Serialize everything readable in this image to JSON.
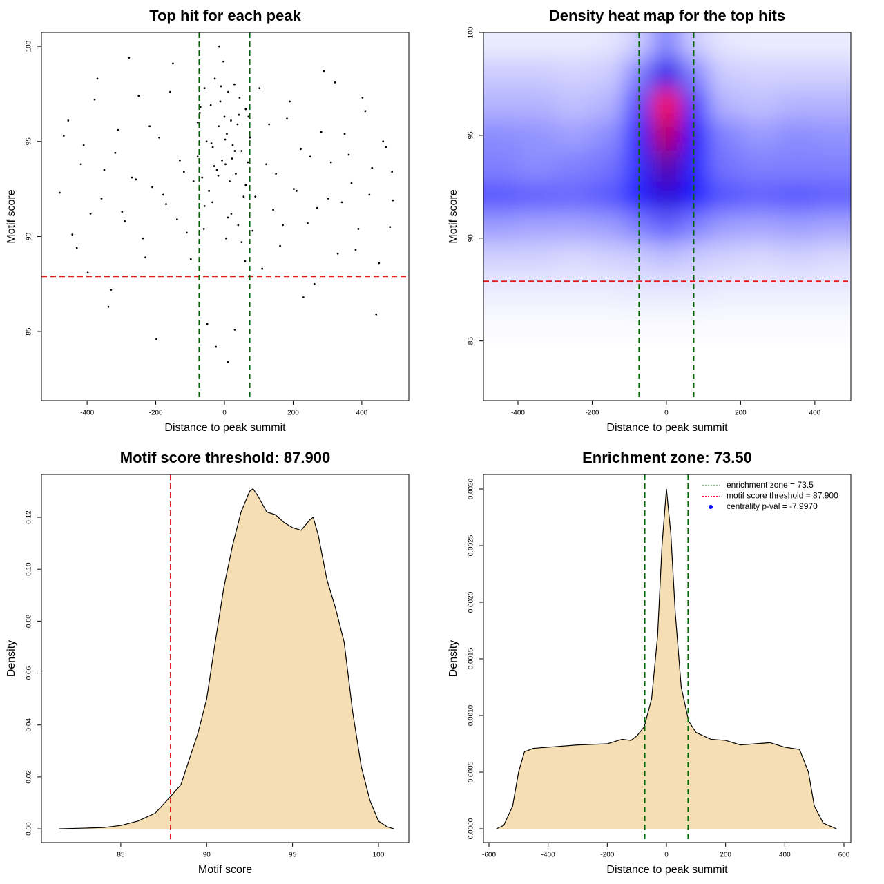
{
  "chart_data": [
    {
      "type": "scatter",
      "title": "Top hit for each peak",
      "xlabel": "Distance to peak summit",
      "ylabel": "Motif score",
      "xlim": [
        -533,
        537
      ],
      "ylim": [
        81.37,
        100.73
      ],
      "xticks": [
        -400,
        -200,
        0,
        200,
        400
      ],
      "yticks": [
        85,
        90,
        95,
        100
      ],
      "color": "#000000",
      "x": [
        -480,
        -455,
        -430,
        -410,
        -390,
        -370,
        -350,
        -330,
        -310,
        -290,
        -270,
        -250,
        -230,
        -210,
        -190,
        -170,
        -150,
        -130,
        -110,
        -90,
        -70,
        -50,
        -30,
        -10,
        10,
        30,
        50,
        70,
        90,
        110,
        130,
        150,
        170,
        190,
        210,
        230,
        250,
        270,
        290,
        310,
        330,
        350,
        370,
        390,
        410,
        430,
        450,
        470,
        490,
        -468,
        -443,
        -418,
        -398,
        -378,
        -358,
        -338,
        -318,
        -298,
        -278,
        -258,
        -238,
        -218,
        -198,
        -178,
        -158,
        -138,
        -118,
        -98,
        -78,
        -58,
        -38,
        -18,
        2,
        22,
        42,
        62,
        82,
        102,
        122,
        142,
        162,
        182,
        202,
        222,
        242,
        262,
        282,
        302,
        322,
        342,
        362,
        382,
        402,
        422,
        442,
        462,
        482,
        488,
        -78,
        -72,
        -65,
        -58,
        -52,
        -45,
        -40,
        -34,
        -28,
        -22,
        -17,
        -12,
        -7,
        -3,
        0,
        3,
        7,
        11,
        15,
        19,
        24,
        29,
        33,
        38,
        44,
        50,
        56,
        62,
        68,
        74,
        -60,
        -35,
        -15,
        5,
        20,
        40,
        60,
        -25,
        10,
        30
      ],
      "values": [
        92.3,
        96.1,
        89.4,
        94.8,
        91.2,
        98.3,
        93.5,
        87.2,
        95.6,
        90.8,
        93.1,
        97.4,
        88.9,
        92.6,
        95.2,
        91.7,
        99.1,
        94.0,
        90.2,
        92.9,
        96.8,
        85.4,
        93.7,
        97.9,
        91.0,
        94.5,
        89.7,
        96.3,
        92.1,
        88.3,
        95.9,
        93.3,
        90.6,
        97.1,
        92.4,
        86.8,
        94.2,
        91.5,
        98.7,
        93.9,
        89.1,
        95.4,
        92.8,
        90.4,
        96.6,
        93.6,
        88.6,
        94.7,
        91.9,
        95.3,
        90.1,
        93.8,
        88.1,
        97.2,
        92.0,
        86.3,
        94.4,
        91.3,
        99.4,
        93.0,
        89.9,
        95.8,
        84.6,
        92.2,
        97.6,
        90.9,
        93.4,
        88.8,
        96.0,
        91.6,
        94.9,
        93.2,
        95.1,
        94.1,
        96.4,
        92.7,
        90.3,
        97.8,
        93.8,
        91.4,
        89.5,
        96.2,
        92.5,
        94.6,
        90.7,
        87.5,
        95.5,
        92.0,
        98.1,
        91.8,
        94.3,
        89.3,
        97.3,
        92.2,
        85.9,
        95.0,
        90.5,
        93.4,
        94.2,
        96.5,
        93.1,
        97.8,
        95.0,
        92.4,
        96.9,
        94.7,
        98.3,
        93.5,
        95.8,
        97.1,
        94.0,
        99.2,
        96.3,
        93.8,
        95.4,
        97.6,
        92.9,
        96.1,
        94.8,
        98.0,
        93.3,
        95.9,
        97.3,
        94.5,
        92.1,
        96.7,
        93.9,
        95.2,
        90.4,
        91.8,
        100.0,
        89.9,
        91.2,
        90.6,
        88.7,
        84.2,
        83.4,
        85.1
      ],
      "hlines": [
        {
          "value": 87.9,
          "color": "#e41a1c"
        }
      ],
      "vlines": [
        {
          "value": -73.5,
          "color": "#006400"
        },
        {
          "value": 73.5,
          "color": "#006400"
        }
      ]
    },
    {
      "type": "heatmap",
      "title": "Density heat map for the top hits",
      "xlabel": "Distance to peak summit",
      "ylabel": "Motif score",
      "xlim": [
        -493,
        497
      ],
      "ylim": [
        82.1,
        100
      ],
      "xticks": [
        -400,
        -200,
        0,
        200,
        400
      ],
      "yticks": [
        85,
        90,
        95,
        100
      ],
      "x": [
        -450,
        -350,
        -250,
        -150,
        -75,
        0,
        75,
        150,
        250,
        350,
        450
      ],
      "y": [
        99.5,
        98,
        96.5,
        95,
        93.5,
        92,
        90.5,
        89,
        87.5,
        86,
        84.5
      ],
      "z": [
        [
          0.03,
          0.03,
          0.03,
          0.04,
          0.08,
          0.2,
          0.08,
          0.04,
          0.03,
          0.03,
          0.03
        ],
        [
          0.08,
          0.08,
          0.07,
          0.08,
          0.2,
          0.45,
          0.2,
          0.08,
          0.07,
          0.07,
          0.07
        ],
        [
          0.12,
          0.12,
          0.1,
          0.12,
          0.3,
          1.0,
          0.32,
          0.12,
          0.1,
          0.12,
          0.12
        ],
        [
          0.18,
          0.17,
          0.15,
          0.18,
          0.35,
          0.85,
          0.38,
          0.2,
          0.16,
          0.18,
          0.17
        ],
        [
          0.2,
          0.18,
          0.2,
          0.22,
          0.33,
          0.62,
          0.35,
          0.22,
          0.2,
          0.2,
          0.2
        ],
        [
          0.26,
          0.25,
          0.24,
          0.26,
          0.35,
          0.5,
          0.36,
          0.27,
          0.25,
          0.26,
          0.25
        ],
        [
          0.15,
          0.14,
          0.14,
          0.15,
          0.2,
          0.25,
          0.2,
          0.15,
          0.14,
          0.15,
          0.14
        ],
        [
          0.07,
          0.07,
          0.06,
          0.07,
          0.08,
          0.1,
          0.08,
          0.07,
          0.06,
          0.07,
          0.06
        ],
        [
          0.03,
          0.03,
          0.03,
          0.03,
          0.04,
          0.04,
          0.04,
          0.03,
          0.03,
          0.03,
          0.03
        ],
        [
          0.01,
          0.01,
          0.01,
          0.01,
          0.01,
          0.01,
          0.01,
          0.01,
          0.01,
          0.01,
          0.01
        ],
        [
          0,
          0,
          0,
          0,
          0,
          0,
          0,
          0,
          0,
          0,
          0
        ]
      ],
      "colors": [
        "#ffffff",
        "#0000ff",
        "#ff0000"
      ],
      "hlines": [
        {
          "value": 87.9,
          "color": "#e41a1c"
        }
      ],
      "vlines": [
        {
          "value": -73.5,
          "color": "#006400"
        },
        {
          "value": 73.5,
          "color": "#006400"
        }
      ]
    },
    {
      "type": "area",
      "title": "Motif score threshold: 87.900",
      "xlabel": "Motif score",
      "ylabel": "Density",
      "xlim": [
        80.38,
        101.77
      ],
      "ylim": [
        -0.0053,
        0.1365
      ],
      "xticks": [
        85,
        90,
        95,
        100
      ],
      "yticks": [
        {
          "value": 0,
          "label": "0.00"
        },
        0.02,
        0.04,
        0.06,
        0.08,
        {
          "value": 0.1,
          "label": "0.10"
        },
        0.12
      ],
      "color": "#f5deb3",
      "x": [
        81.4,
        83,
        84,
        85,
        86,
        87,
        87.9,
        88.5,
        89,
        89.5,
        90,
        90.5,
        91,
        91.5,
        92,
        92.5,
        92.7,
        93,
        93.5,
        94,
        94.5,
        95,
        95.5,
        96,
        96.2,
        96.5,
        97,
        97.5,
        98,
        98.5,
        99,
        99.5,
        100,
        100.5,
        100.9
      ],
      "values": [
        0,
        0.0003,
        0.0005,
        0.0013,
        0.003,
        0.006,
        0.0125,
        0.017,
        0.027,
        0.037,
        0.05,
        0.072,
        0.093,
        0.109,
        0.122,
        0.13,
        0.131,
        0.128,
        0.122,
        0.121,
        0.118,
        0.116,
        0.115,
        0.119,
        0.12,
        0.113,
        0.096,
        0.085,
        0.072,
        0.045,
        0.024,
        0.011,
        0.003,
        0.0008,
        0
      ],
      "vlines": [
        {
          "value": 87.9,
          "color": "#e41a1c"
        }
      ]
    },
    {
      "type": "area",
      "title": "Enrichment zone: 73.50",
      "xlabel": "Distance to peak summit",
      "ylabel": "Density",
      "xlim": [
        -618.7,
        623.4
      ],
      "ylim": [
        -0.000122,
        0.003128
      ],
      "xticks": [
        -600,
        -400,
        -200,
        0,
        200,
        400,
        600
      ],
      "yticks": [
        {
          "value": 0,
          "label": "0.0000"
        },
        0.0005,
        {
          "value": 0.001,
          "label": "0.0010"
        },
        0.0015,
        {
          "value": 0.002,
          "label": "0.0020"
        },
        0.0025,
        {
          "value": 0.003,
          "label": "0.0030"
        }
      ],
      "color": "#f5deb3",
      "x": [
        -575,
        -550,
        -520,
        -500,
        -480,
        -450,
        -400,
        -300,
        -200,
        -150,
        -120,
        -100,
        -75,
        -50,
        -30,
        -15,
        0,
        15,
        30,
        50,
        75,
        100,
        150,
        200,
        250,
        300,
        350,
        400,
        450,
        480,
        500,
        530,
        575
      ],
      "values": [
        0,
        3e-05,
        0.0002,
        0.0005,
        0.00068,
        0.00071,
        0.00072,
        0.00074,
        0.00075,
        0.00079,
        0.00078,
        0.00082,
        0.0009,
        0.00115,
        0.0017,
        0.0025,
        0.003,
        0.0026,
        0.0019,
        0.00125,
        0.00095,
        0.00085,
        0.00079,
        0.00078,
        0.00074,
        0.00075,
        0.00076,
        0.00072,
        0.0007,
        0.0005,
        0.0002,
        5e-05,
        0
      ],
      "vlines": [
        {
          "value": -73.5,
          "color": "#006400"
        },
        {
          "value": 73.5,
          "color": "#006400"
        }
      ],
      "legend_position": "topright",
      "legend": [
        {
          "label": "enrichment zone = 73.5",
          "color": "#006400",
          "style": "line"
        },
        {
          "label": "motif score threshold = 87.900",
          "color": "#e41a1c",
          "style": "line"
        },
        {
          "label": "centrality p-val = -7.9970",
          "color": "#0000ff",
          "style": "point"
        }
      ]
    }
  ]
}
